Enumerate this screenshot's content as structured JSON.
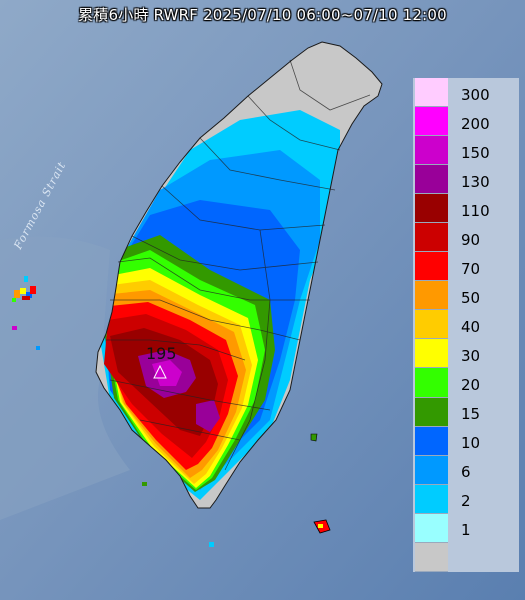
{
  "title": {
    "label": "累積6小時",
    "model": "RWRF",
    "period": "2025/07/10 06:00~07/10 12:00"
  },
  "strait_label": "Formosa Strait",
  "peak_label": "195",
  "legend": {
    "stops": [
      {
        "label": "300",
        "color": "#ffccff"
      },
      {
        "label": "200",
        "color": "#ff00ff"
      },
      {
        "label": "150",
        "color": "#cc00cc"
      },
      {
        "label": "130",
        "color": "#990099"
      },
      {
        "label": "110",
        "color": "#990000"
      },
      {
        "label": "90",
        "color": "#cc0000"
      },
      {
        "label": "70",
        "color": "#ff0000"
      },
      {
        "label": "50",
        "color": "#ff9900"
      },
      {
        "label": "40",
        "color": "#ffcc00"
      },
      {
        "label": "30",
        "color": "#ffff00"
      },
      {
        "label": "20",
        "color": "#33ff00"
      },
      {
        "label": "15",
        "color": "#339900"
      },
      {
        "label": "10",
        "color": "#0066ff"
      },
      {
        "label": "6",
        "color": "#0099ff"
      },
      {
        "label": "2",
        "color": "#00ccff"
      },
      {
        "label": "1",
        "color": "#99ffff"
      },
      {
        "label": "",
        "color": "#c8c8c8"
      }
    ]
  }
}
